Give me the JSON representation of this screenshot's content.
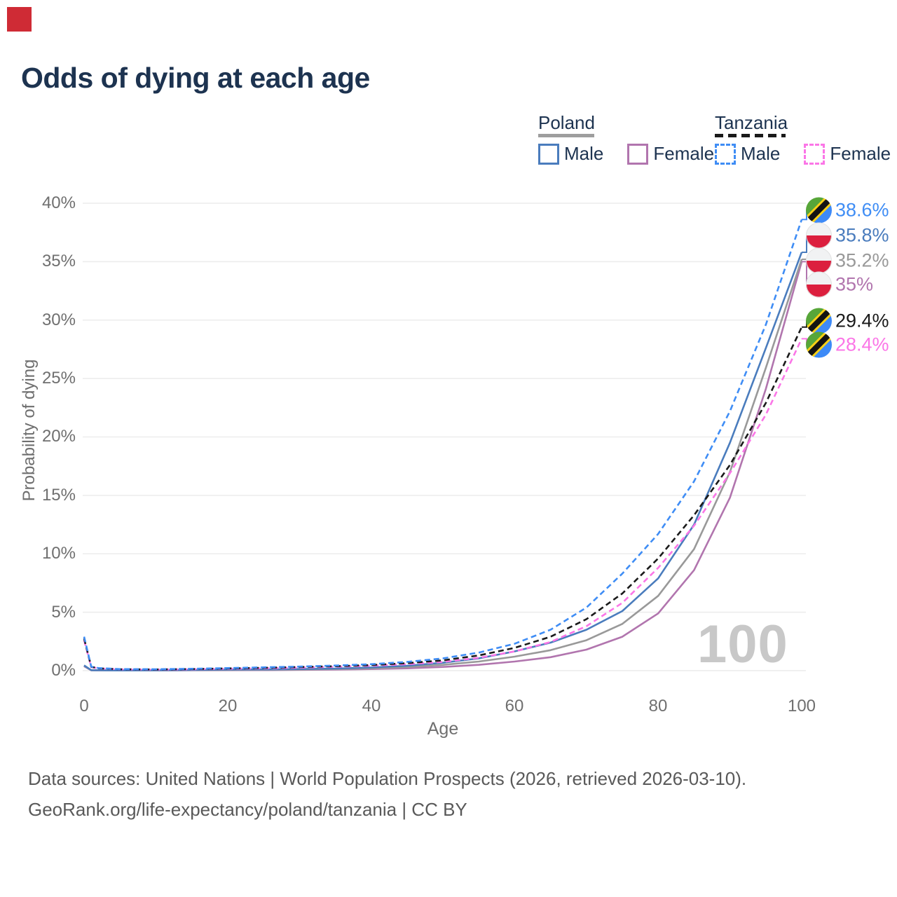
{
  "page": {
    "red_marker_color": "#cf2b35"
  },
  "title": "Odds of dying at each age",
  "legend": {
    "groups": [
      {
        "country": "Poland",
        "line_style": "solid",
        "underline_color": "#9e9e9e",
        "items": [
          {
            "label": "Male",
            "color": "#4a7cbd"
          },
          {
            "label": "Female",
            "color": "#b175ae"
          }
        ]
      },
      {
        "country": "Tanzania",
        "line_style": "dashed",
        "underline_color": "#1a1a1a",
        "items": [
          {
            "label": "Male",
            "color": "#3f8df5"
          },
          {
            "label": "Female",
            "color": "#fb76e7"
          }
        ]
      }
    ]
  },
  "chart_data": {
    "type": "line",
    "title": "Odds of dying at each age",
    "xlabel": "Age",
    "ylabel": "Probability of dying",
    "xlim": [
      0,
      100
    ],
    "ylim": [
      0,
      40
    ],
    "x_ticks": [
      "0",
      "20",
      "40",
      "60",
      "80",
      "100"
    ],
    "y_ticks_top_down": [
      "40%",
      "35%",
      "30%",
      "25%",
      "20%",
      "15%",
      "10%",
      "5%",
      "0%"
    ],
    "grid": "horizontal",
    "watermark": "100",
    "legend_position": "top-right",
    "ages": [
      0,
      1,
      2,
      5,
      10,
      15,
      20,
      25,
      30,
      35,
      40,
      45,
      50,
      55,
      60,
      65,
      70,
      75,
      80,
      85,
      90,
      95,
      100
    ],
    "series": [
      {
        "name": "Tanzania Male",
        "color": "#3f8df5",
        "dashed": true,
        "flag": "tanzania",
        "end_label": "38.6%",
        "values": [
          2.9,
          0.35,
          0.22,
          0.13,
          0.12,
          0.16,
          0.22,
          0.28,
          0.35,
          0.44,
          0.55,
          0.75,
          1.05,
          1.55,
          2.3,
          3.5,
          5.4,
          8.3,
          11.7,
          16.2,
          22.2,
          29.6,
          38.6
        ]
      },
      {
        "name": "Poland Male",
        "color": "#4a7cbd",
        "dashed": false,
        "flag": "poland",
        "end_label": "35.8%",
        "values": [
          0.45,
          0.04,
          0.03,
          0.02,
          0.03,
          0.06,
          0.09,
          0.11,
          0.14,
          0.18,
          0.27,
          0.42,
          0.68,
          1.05,
          1.65,
          2.4,
          3.5,
          5.1,
          7.9,
          12.5,
          19.5,
          27.6,
          35.8
        ]
      },
      {
        "name": "Poland Both sexes",
        "color": "#999999",
        "dashed": false,
        "flag": "poland",
        "end_label": "35.2%",
        "values": [
          0.42,
          0.035,
          0.027,
          0.018,
          0.025,
          0.045,
          0.065,
          0.08,
          0.1,
          0.14,
          0.2,
          0.31,
          0.5,
          0.78,
          1.2,
          1.75,
          2.6,
          4.0,
          6.4,
          10.4,
          17.0,
          25.9,
          35.2
        ]
      },
      {
        "name": "Poland Female",
        "color": "#b175ae",
        "dashed": false,
        "flag": "poland",
        "end_label": "35%",
        "values": [
          0.38,
          0.03,
          0.022,
          0.015,
          0.02,
          0.03,
          0.04,
          0.05,
          0.07,
          0.09,
          0.14,
          0.2,
          0.32,
          0.5,
          0.78,
          1.15,
          1.8,
          2.9,
          4.9,
          8.6,
          14.8,
          24.1,
          35.0
        ]
      },
      {
        "name": "Tanzania Both sexes",
        "color": "#1a1a1a",
        "dashed": true,
        "flag": "tanzania",
        "end_label": "29.4%",
        "values": [
          2.75,
          0.33,
          0.2,
          0.12,
          0.1,
          0.14,
          0.19,
          0.24,
          0.31,
          0.38,
          0.48,
          0.64,
          0.88,
          1.3,
          1.95,
          2.9,
          4.4,
          6.6,
          9.6,
          13.3,
          17.6,
          22.9,
          29.4
        ]
      },
      {
        "name": "Tanzania Female",
        "color": "#fb76e7",
        "dashed": true,
        "flag": "tanzania",
        "end_label": "28.4%",
        "values": [
          2.6,
          0.3,
          0.19,
          0.11,
          0.09,
          0.12,
          0.16,
          0.2,
          0.26,
          0.33,
          0.42,
          0.55,
          0.75,
          1.1,
          1.65,
          2.45,
          3.8,
          5.8,
          8.8,
          12.4,
          16.9,
          21.9,
          28.4
        ]
      }
    ]
  },
  "footer": {
    "line1": "Data sources: United Nations | World Population Prospects (2026, retrieved 2026-03-10).",
    "line2": "GeoRank.org/life-expectancy/poland/tanzania | CC BY"
  }
}
